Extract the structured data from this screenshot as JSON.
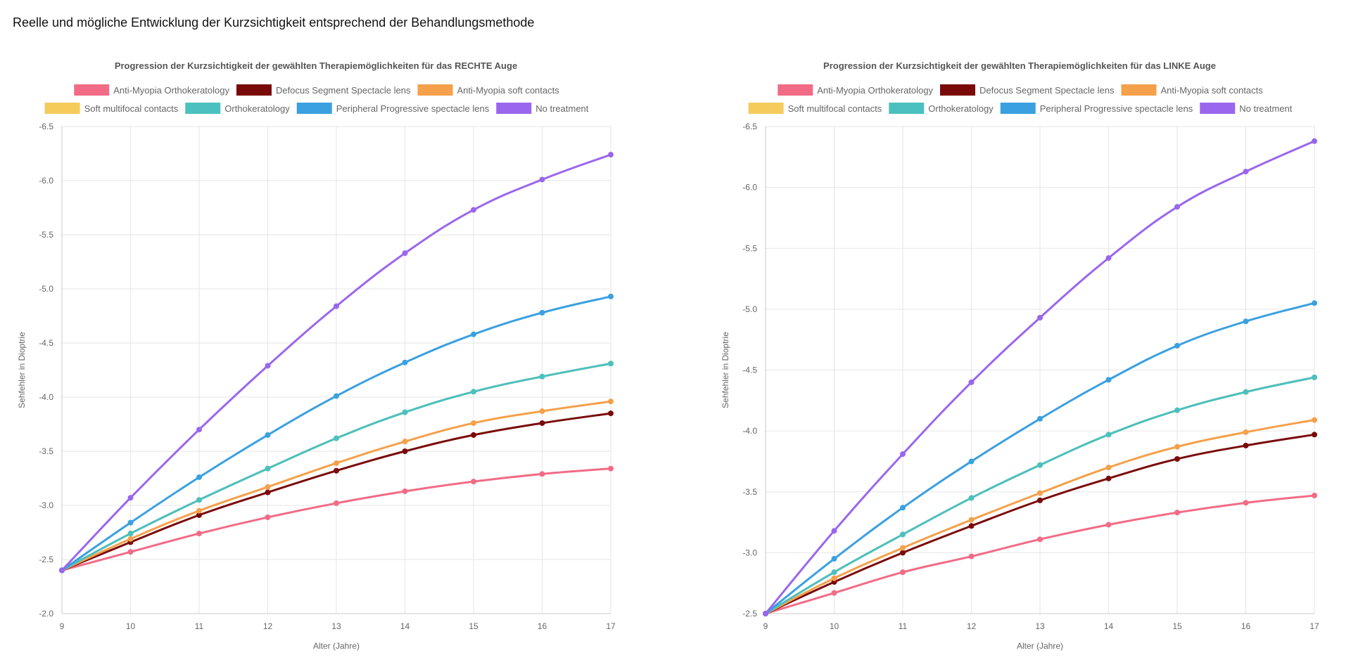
{
  "page": {
    "title": "Reelle und mögliche Entwicklung der Kurzsichtigkeit entsprechend der Behandlungsmethode"
  },
  "chart_data": [
    {
      "type": "line",
      "title": "Progression der Kurzsichtigkeit der gewählten Therapiemöglichkeiten für das RECHTE Auge",
      "xlabel": "Alter (Jahre)",
      "ylabel": "Sehfehler in Dioptrie",
      "x": [
        9,
        10,
        11,
        12,
        13,
        14,
        15,
        16,
        17
      ],
      "ylim": [
        -2.0,
        -6.5
      ],
      "yticks": [
        "-6.5",
        "-6.0",
        "-5.5",
        "-5.0",
        "-4.5",
        "-4.0",
        "-3.5",
        "-3.0",
        "-2.5",
        "-2.0"
      ],
      "ytick_values": [
        -6.5,
        -6.0,
        -5.5,
        -5.0,
        -4.5,
        -4.0,
        -3.5,
        -3.0,
        -2.5,
        -2.0
      ],
      "legend_position": "top",
      "grid": true,
      "series": [
        {
          "name": "Anti-Myopia Orthokeratology",
          "color": "#f26b86",
          "values": [
            -2.4,
            -2.57,
            -2.74,
            -2.89,
            -3.02,
            -3.13,
            -3.22,
            -3.29,
            -3.34
          ]
        },
        {
          "name": "Defocus Segment Spectacle lens",
          "color": "#7a0a0a",
          "values": [
            -2.4,
            -2.66,
            -2.91,
            -3.12,
            -3.32,
            -3.5,
            -3.65,
            -3.76,
            -3.85
          ]
        },
        {
          "name": "Anti-Myopia soft contacts",
          "color": "#f5a04a",
          "values": [
            -2.4,
            -2.69,
            -2.95,
            -3.17,
            -3.39,
            -3.59,
            -3.76,
            -3.87,
            -3.96
          ]
        },
        {
          "name": "Soft multifocal contacts",
          "color": "#f5cb5c",
          "values": [
            -2.4,
            -2.74,
            -3.05,
            -3.34,
            -3.62,
            -3.86,
            -4.05,
            -4.19,
            -4.31
          ]
        },
        {
          "name": "Orthokeratology",
          "color": "#4bc0c0",
          "values": [
            -2.4,
            -2.74,
            -3.05,
            -3.34,
            -3.62,
            -3.86,
            -4.05,
            -4.19,
            -4.31
          ]
        },
        {
          "name": "Peripheral Progressive spectacle lens",
          "color": "#3aa0e0",
          "values": [
            -2.4,
            -2.84,
            -3.26,
            -3.65,
            -4.01,
            -4.32,
            -4.58,
            -4.78,
            -4.93
          ]
        },
        {
          "name": "No treatment",
          "color": "#9a66ee",
          "values": [
            -2.4,
            -3.07,
            -3.7,
            -4.29,
            -4.84,
            -5.33,
            -5.73,
            -6.01,
            -6.24
          ]
        }
      ]
    },
    {
      "type": "line",
      "title": "Progression der Kurzsichtigkeit der gewählten Therapiemöglichkeiten für das LINKE Auge",
      "xlabel": "Alter (Jahre)",
      "ylabel": "Sehfehler in Dioptrie",
      "x": [
        9,
        10,
        11,
        12,
        13,
        14,
        15,
        16,
        17
      ],
      "ylim": [
        -2.5,
        -6.5
      ],
      "yticks": [
        "-6.5",
        "-6.0",
        "-5.5",
        "-5.0",
        "-4.5",
        "-4.0",
        "-3.5",
        "-3.0",
        "-2.5"
      ],
      "ytick_values": [
        -6.5,
        -6.0,
        -5.5,
        -5.0,
        -4.5,
        -4.0,
        -3.5,
        -3.0,
        -2.5
      ],
      "legend_position": "top",
      "grid": true,
      "series": [
        {
          "name": "Anti-Myopia Orthokeratology",
          "color": "#f26b86",
          "values": [
            -2.5,
            -2.67,
            -2.84,
            -2.97,
            -3.11,
            -3.23,
            -3.33,
            -3.41,
            -3.47
          ]
        },
        {
          "name": "Defocus Segment Spectacle lens",
          "color": "#7a0a0a",
          "values": [
            -2.5,
            -2.76,
            -3.0,
            -3.22,
            -3.43,
            -3.61,
            -3.77,
            -3.88,
            -3.97
          ]
        },
        {
          "name": "Anti-Myopia soft contacts",
          "color": "#f5a04a",
          "values": [
            -2.5,
            -2.79,
            -3.04,
            -3.27,
            -3.49,
            -3.7,
            -3.87,
            -3.99,
            -4.09
          ]
        },
        {
          "name": "Soft multifocal contacts",
          "color": "#f5cb5c",
          "values": [
            -2.5,
            -2.84,
            -3.15,
            -3.45,
            -3.72,
            -3.97,
            -4.17,
            -4.32,
            -4.44
          ]
        },
        {
          "name": "Orthokeratology",
          "color": "#4bc0c0",
          "values": [
            -2.5,
            -2.84,
            -3.15,
            -3.45,
            -3.72,
            -3.97,
            -4.17,
            -4.32,
            -4.44
          ]
        },
        {
          "name": "Peripheral Progressive spectacle lens",
          "color": "#3aa0e0",
          "values": [
            -2.5,
            -2.95,
            -3.37,
            -3.75,
            -4.1,
            -4.42,
            -4.7,
            -4.9,
            -5.05
          ]
        },
        {
          "name": "No treatment",
          "color": "#9a66ee",
          "values": [
            -2.5,
            -3.18,
            -3.81,
            -4.4,
            -4.93,
            -5.42,
            -5.84,
            -6.13,
            -6.38
          ]
        }
      ]
    }
  ]
}
